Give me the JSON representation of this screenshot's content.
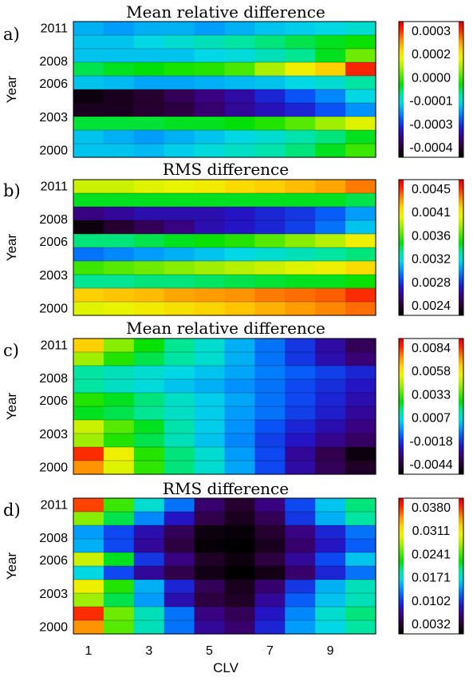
{
  "x_axis": {
    "label": "CLV",
    "ticks": [
      "1",
      "3",
      "5",
      "7",
      "9"
    ],
    "tick_values": [
      1,
      3,
      5,
      7,
      9
    ],
    "range": [
      1,
      10
    ]
  },
  "y_axis": {
    "label": "Year",
    "ticks": [
      "2011",
      "2008",
      "2006",
      "2003",
      "2000"
    ],
    "tick_values": [
      2011,
      2008,
      2006,
      2003,
      2000
    ]
  },
  "colorscale": [
    "#000000",
    "#2a0033",
    "#3b007a",
    "#2414c4",
    "#0a4ef5",
    "#0096ff",
    "#00d8e6",
    "#00e69a",
    "#00e000",
    "#55ea00",
    "#a8f000",
    "#ecf400",
    "#ffd000",
    "#ff8c00",
    "#ff3000",
    "#e00000"
  ],
  "chart_data": [
    {
      "type": "heatmap",
      "panel_label": "a)",
      "title": "Mean relative difference",
      "colorbar_ticks": [
        "0.0003",
        "0.0002",
        "0.0000",
        "-0.0001",
        "-0.0003",
        "-0.0004"
      ],
      "rows_top_to_bottom": [
        [
          0.36,
          0.34,
          0.36,
          0.36,
          0.34,
          0.36,
          0.38,
          0.39,
          0.4,
          0.42
        ],
        [
          0.38,
          0.38,
          0.4,
          0.42,
          0.44,
          0.46,
          0.48,
          0.5,
          0.52,
          0.54
        ],
        [
          0.38,
          0.38,
          0.38,
          0.38,
          0.4,
          0.41,
          0.44,
          0.47,
          0.52,
          0.62
        ],
        [
          0.5,
          0.52,
          0.53,
          0.55,
          0.56,
          0.59,
          0.67,
          0.74,
          0.8,
          0.95
        ],
        [
          0.38,
          0.37,
          0.35,
          0.35,
          0.36,
          0.37,
          0.38,
          0.4,
          0.42,
          0.46
        ],
        [
          0.02,
          0.04,
          0.06,
          0.1,
          0.14,
          0.17,
          0.22,
          0.27,
          0.32,
          0.4
        ],
        [
          0.04,
          0.04,
          0.06,
          0.08,
          0.12,
          0.16,
          0.19,
          0.22,
          0.27,
          0.33
        ],
        [
          0.51,
          0.51,
          0.51,
          0.52,
          0.52,
          0.53,
          0.56,
          0.6,
          0.66,
          0.72
        ],
        [
          0.38,
          0.36,
          0.34,
          0.36,
          0.38,
          0.4,
          0.42,
          0.45,
          0.48,
          0.52
        ],
        [
          0.38,
          0.38,
          0.37,
          0.39,
          0.41,
          0.43,
          0.45,
          0.48,
          0.52,
          0.58
        ]
      ]
    },
    {
      "type": "heatmap",
      "panel_label": "b)",
      "title": "RMS difference",
      "colorbar_ticks": [
        "0.0045",
        "0.0041",
        "0.0036",
        "0.0032",
        "0.0028",
        "0.0024"
      ],
      "rows_top_to_bottom": [
        [
          0.7,
          0.7,
          0.72,
          0.73,
          0.75,
          0.78,
          0.8,
          0.82,
          0.84,
          0.88
        ],
        [
          0.52,
          0.52,
          0.52,
          0.52,
          0.52,
          0.52,
          0.52,
          0.52,
          0.52,
          0.5
        ],
        [
          0.14,
          0.16,
          0.18,
          0.18,
          0.18,
          0.2,
          0.22,
          0.24,
          0.28,
          0.34
        ],
        [
          0.02,
          0.06,
          0.1,
          0.14,
          0.18,
          0.2,
          0.22,
          0.25,
          0.3,
          0.38
        ],
        [
          0.48,
          0.48,
          0.5,
          0.52,
          0.54,
          0.56,
          0.6,
          0.64,
          0.68,
          0.74
        ],
        [
          0.3,
          0.32,
          0.34,
          0.36,
          0.38,
          0.4,
          0.42,
          0.44,
          0.46,
          0.48
        ],
        [
          0.58,
          0.6,
          0.62,
          0.64,
          0.66,
          0.68,
          0.7,
          0.72,
          0.74,
          0.78
        ],
        [
          0.47,
          0.47,
          0.48,
          0.48,
          0.49,
          0.5,
          0.51,
          0.52,
          0.52,
          0.54
        ],
        [
          0.8,
          0.81,
          0.82,
          0.84,
          0.85,
          0.86,
          0.88,
          0.89,
          0.9,
          0.94
        ],
        [
          0.72,
          0.73,
          0.75,
          0.77,
          0.79,
          0.81,
          0.83,
          0.85,
          0.87,
          0.89
        ]
      ]
    },
    {
      "type": "heatmap",
      "panel_label": "c)",
      "title": "Mean relative difference",
      "colorbar_ticks": [
        "0.0084",
        "0.0058",
        "0.0033",
        "0.0007",
        "-0.0018",
        "-0.0044"
      ],
      "rows_top_to_bottom": [
        [
          0.8,
          0.64,
          0.54,
          0.47,
          0.42,
          0.36,
          0.3,
          0.24,
          0.17,
          0.1
        ],
        [
          0.66,
          0.56,
          0.5,
          0.46,
          0.42,
          0.36,
          0.3,
          0.24,
          0.18,
          0.13
        ],
        [
          0.46,
          0.44,
          0.42,
          0.4,
          0.38,
          0.35,
          0.31,
          0.28,
          0.25,
          0.22
        ],
        [
          0.46,
          0.43,
          0.41,
          0.38,
          0.36,
          0.33,
          0.3,
          0.26,
          0.23,
          0.2
        ],
        [
          0.56,
          0.52,
          0.48,
          0.43,
          0.39,
          0.35,
          0.3,
          0.26,
          0.22,
          0.18
        ],
        [
          0.52,
          0.5,
          0.47,
          0.43,
          0.39,
          0.34,
          0.3,
          0.25,
          0.21,
          0.16
        ],
        [
          0.7,
          0.6,
          0.52,
          0.45,
          0.39,
          0.33,
          0.27,
          0.22,
          0.18,
          0.14
        ],
        [
          0.66,
          0.56,
          0.5,
          0.44,
          0.38,
          0.32,
          0.25,
          0.2,
          0.15,
          0.11
        ],
        [
          0.94,
          0.74,
          0.56,
          0.48,
          0.42,
          0.34,
          0.26,
          0.16,
          0.09,
          0.02
        ],
        [
          0.86,
          0.72,
          0.57,
          0.48,
          0.42,
          0.35,
          0.26,
          0.17,
          0.1,
          0.05
        ]
      ]
    },
    {
      "type": "heatmap",
      "panel_label": "d)",
      "title": "RMS difference",
      "colorbar_ticks": [
        "0.0380",
        "0.0311",
        "0.0241",
        "0.0171",
        "0.0102",
        "0.0032"
      ],
      "rows_top_to_bottom": [
        [
          0.92,
          0.58,
          0.42,
          0.3,
          0.12,
          0.06,
          0.14,
          0.26,
          0.38,
          0.48
        ],
        [
          0.64,
          0.5,
          0.32,
          0.2,
          0.09,
          0.04,
          0.1,
          0.24,
          0.36,
          0.46
        ],
        [
          0.34,
          0.26,
          0.18,
          0.1,
          0.02,
          0.01,
          0.06,
          0.14,
          0.22,
          0.3
        ],
        [
          0.36,
          0.26,
          0.16,
          0.08,
          0.01,
          0.0,
          0.04,
          0.12,
          0.2,
          0.28
        ],
        [
          0.7,
          0.52,
          0.24,
          0.14,
          0.05,
          0.02,
          0.08,
          0.16,
          0.26,
          0.38
        ],
        [
          0.4,
          0.26,
          0.16,
          0.09,
          0.03,
          0.0,
          0.03,
          0.12,
          0.22,
          0.3
        ],
        [
          0.74,
          0.56,
          0.36,
          0.22,
          0.1,
          0.04,
          0.12,
          0.24,
          0.36,
          0.44
        ],
        [
          0.66,
          0.5,
          0.34,
          0.18,
          0.08,
          0.05,
          0.16,
          0.28,
          0.38,
          0.44
        ],
        [
          0.94,
          0.62,
          0.44,
          0.3,
          0.14,
          0.1,
          0.2,
          0.32,
          0.42,
          0.48
        ],
        [
          0.86,
          0.6,
          0.44,
          0.3,
          0.16,
          0.12,
          0.22,
          0.34,
          0.4,
          0.46
        ]
      ]
    }
  ]
}
